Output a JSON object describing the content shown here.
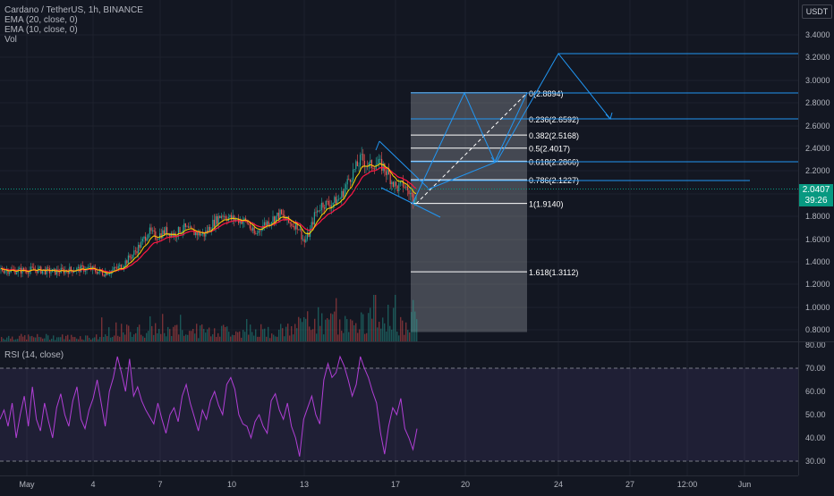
{
  "legend": {
    "symbol": "Cardano / TetherUS, 1h, BINANCE",
    "ema20": "EMA (20, close, 0)",
    "ema10": "EMA (10, close, 0)",
    "vol": "Vol"
  },
  "rsi_label": "RSI (14, close)",
  "currency": "USDT",
  "last_price": "2.0407",
  "countdown": "39:26",
  "price_ticks": [
    "3.4000",
    "3.2000",
    "3.0000",
    "2.8000",
    "2.6000",
    "2.4000",
    "2.2000",
    "2.0000",
    "1.8000",
    "1.6000",
    "1.4000",
    "1.2000",
    "1.0000",
    "0.8000"
  ],
  "rsi_ticks": [
    "80.00",
    "70.00",
    "60.00",
    "50.00",
    "40.00",
    "30.00"
  ],
  "time_ticks": [
    "May",
    "4",
    "7",
    "10",
    "13",
    "17",
    "20",
    "24",
    "27",
    "12:00",
    "Jun"
  ],
  "fib_levels": [
    {
      "label": "0(2.8894)",
      "ratio": 0,
      "price": 2.8894
    },
    {
      "label": "0.236(2.6592)",
      "ratio": 0.236,
      "price": 2.6592
    },
    {
      "label": "0.382(2.5168)",
      "ratio": 0.382,
      "price": 2.5168
    },
    {
      "label": "0.5(2.4017)",
      "ratio": 0.5,
      "price": 2.4017
    },
    {
      "label": "0.618(2.2866)",
      "ratio": 0.618,
      "price": 2.2866
    },
    {
      "label": "0.786(2.1227)",
      "ratio": 0.786,
      "price": 2.1227
    },
    {
      "label": "1(1.9140)",
      "ratio": 1,
      "price": 1.914
    },
    {
      "label": "1.618(1.3112)",
      "ratio": 1.618,
      "price": 1.3112
    }
  ],
  "colors": {
    "background": "#131722",
    "candle_up": "#26a69a",
    "candle_down": "#ef5350",
    "ema20": "#ff1744",
    "ema10": "#ffd600",
    "drawing": "#2196f3",
    "rsi": "#b13fd6",
    "price_tag": "#089981"
  },
  "chart_data": {
    "type": "line",
    "title": "Cardano / TetherUS, 1h, BINANCE",
    "x": [
      "May",
      "4",
      "7",
      "10",
      "13",
      "17",
      "20",
      "24",
      "27",
      "Jun"
    ],
    "ylim": [
      0.72,
      3.5
    ],
    "price_path": [
      [
        0,
        1.33
      ],
      [
        20,
        1.32
      ],
      [
        40,
        1.33
      ],
      [
        60,
        1.31
      ],
      [
        80,
        1.33
      ],
      [
        100,
        1.34
      ],
      [
        115,
        1.3
      ],
      [
        125,
        1.32
      ],
      [
        135,
        1.36
      ],
      [
        148,
        1.46
      ],
      [
        158,
        1.56
      ],
      [
        166,
        1.67
      ],
      [
        174,
        1.62
      ],
      [
        185,
        1.67
      ],
      [
        195,
        1.64
      ],
      [
        205,
        1.7
      ],
      [
        215,
        1.66
      ],
      [
        228,
        1.64
      ],
      [
        238,
        1.74
      ],
      [
        248,
        1.82
      ],
      [
        258,
        1.78
      ],
      [
        268,
        1.77
      ],
      [
        276,
        1.75
      ],
      [
        285,
        1.63
      ],
      [
        293,
        1.72
      ],
      [
        303,
        1.77
      ],
      [
        313,
        1.82
      ],
      [
        323,
        1.74
      ],
      [
        333,
        1.72
      ],
      [
        340,
        1.57
      ],
      [
        346,
        1.66
      ],
      [
        352,
        1.82
      ],
      [
        360,
        1.91
      ],
      [
        370,
        1.91
      ],
      [
        380,
        1.96
      ],
      [
        390,
        2.13
      ],
      [
        397,
        2.22
      ],
      [
        404,
        2.31
      ],
      [
        412,
        2.24
      ],
      [
        420,
        2.27
      ],
      [
        428,
        2.24
      ],
      [
        436,
        2.14
      ],
      [
        443,
        2.05
      ],
      [
        451,
        2.08
      ],
      [
        458,
        2.0
      ],
      [
        462,
        1.96
      ],
      [
        466,
        2.04
      ]
    ],
    "rsi": {
      "ylim": [
        27,
        83
      ],
      "levels": [
        70,
        30
      ],
      "values": [
        48,
        52,
        45,
        55,
        40,
        50,
        58,
        45,
        62,
        48,
        43,
        55,
        47,
        40,
        53,
        59,
        50,
        45,
        56,
        62,
        48,
        44,
        52,
        57,
        65,
        55,
        45,
        60,
        66,
        75,
        68,
        60,
        74,
        58,
        62,
        56,
        52,
        49,
        46,
        55,
        48,
        42,
        50,
        53,
        47,
        58,
        63,
        55,
        49,
        43,
        52,
        48,
        56,
        60,
        54,
        50,
        63,
        66,
        61,
        50,
        46,
        45,
        40,
        47,
        50,
        45,
        42,
        56,
        59,
        52,
        48,
        55,
        45,
        40,
        32,
        48,
        53,
        58,
        50,
        46,
        65,
        72,
        66,
        68,
        75,
        71,
        65,
        58,
        63,
        75,
        70,
        66,
        60,
        55,
        42,
        33,
        45,
        53,
        50,
        57,
        44,
        40,
        35,
        44
      ]
    }
  }
}
